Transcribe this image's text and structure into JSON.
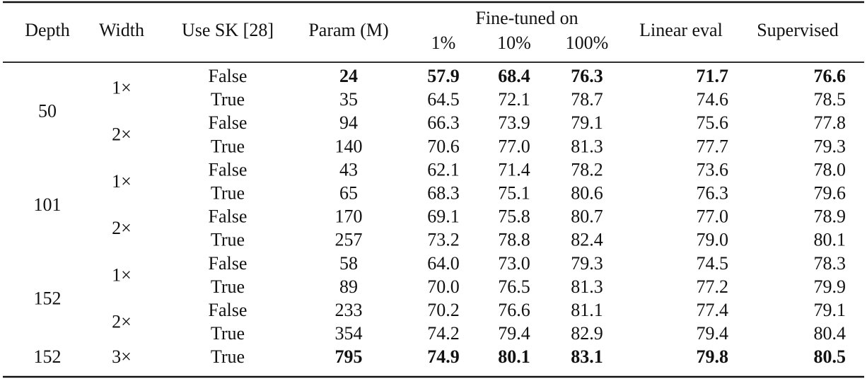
{
  "table": {
    "header": {
      "columns": [
        "Depth",
        "Width",
        "Use SK [28]",
        "Param (M)",
        "Fine-tuned on",
        "Linear eval",
        "Supervised"
      ],
      "subcolumns": [
        "1%",
        "10%",
        "100%"
      ]
    },
    "groups": [
      {
        "depth": "50",
        "widths": [
          {
            "width": "1×",
            "rows": [
              {
                "cells": [
                  "False",
                  "24",
                  "57.9",
                  "68.4",
                  "76.3",
                  "71.7",
                  "76.6"
                ],
                "bold": true
              },
              {
                "cells": [
                  "True",
                  "35",
                  "64.5",
                  "72.1",
                  "78.7",
                  "74.6",
                  "78.5"
                ]
              }
            ]
          },
          {
            "width": "2×",
            "rows": [
              {
                "cells": [
                  "False",
                  "94",
                  "66.3",
                  "73.9",
                  "79.1",
                  "75.6",
                  "77.8"
                ]
              },
              {
                "cells": [
                  "True",
                  "140",
                  "70.6",
                  "77.0",
                  "81.3",
                  "77.7",
                  "79.3"
                ]
              }
            ]
          }
        ]
      },
      {
        "depth": "101",
        "widths": [
          {
            "width": "1×",
            "rows": [
              {
                "cells": [
                  "False",
                  "43",
                  "62.1",
                  "71.4",
                  "78.2",
                  "73.6",
                  "78.0"
                ]
              },
              {
                "cells": [
                  "True",
                  "65",
                  "68.3",
                  "75.1",
                  "80.6",
                  "76.3",
                  "79.6"
                ]
              }
            ]
          },
          {
            "width": "2×",
            "rows": [
              {
                "cells": [
                  "False",
                  "170",
                  "69.1",
                  "75.8",
                  "80.7",
                  "77.0",
                  "78.9"
                ]
              },
              {
                "cells": [
                  "True",
                  "257",
                  "73.2",
                  "78.8",
                  "82.4",
                  "79.0",
                  "80.1"
                ]
              }
            ]
          }
        ]
      },
      {
        "depth": "152",
        "widths": [
          {
            "width": "1×",
            "rows": [
              {
                "cells": [
                  "False",
                  "58",
                  "64.0",
                  "73.0",
                  "79.3",
                  "74.5",
                  "78.3"
                ]
              },
              {
                "cells": [
                  "True",
                  "89",
                  "70.0",
                  "76.5",
                  "81.3",
                  "77.2",
                  "79.9"
                ]
              }
            ]
          },
          {
            "width": "2×",
            "rows": [
              {
                "cells": [
                  "False",
                  "233",
                  "70.2",
                  "76.6",
                  "81.1",
                  "77.4",
                  "79.1"
                ]
              },
              {
                "cells": [
                  "True",
                  "354",
                  "74.2",
                  "79.4",
                  "82.9",
                  "79.4",
                  "80.4"
                ]
              }
            ]
          }
        ]
      },
      {
        "depth": "152",
        "widths": [
          {
            "width": "3×",
            "rows": [
              {
                "cells": [
                  "True",
                  "795",
                  "74.9",
                  "80.1",
                  "83.1",
                  "79.8",
                  "80.5"
                ],
                "bold": true
              }
            ]
          }
        ]
      }
    ]
  }
}
